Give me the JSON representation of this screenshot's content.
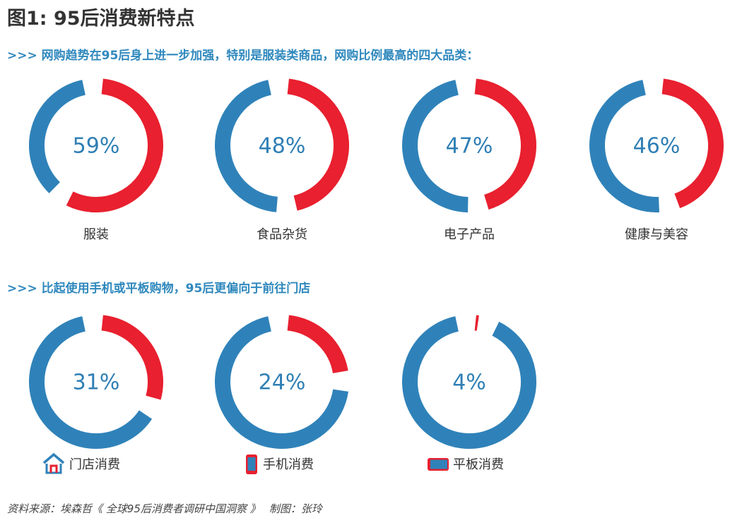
{
  "title": "图1: 95后消费新特点",
  "section1_heading": ">>> 网购趋势在95后身上进一步加强，特别是服装类商品，网购比例最高的四大品类：",
  "section2_heading": ">>> 比起使用手机或平板购物，95后更偏向于前往门店",
  "source": "资料来源：埃森哲《 全球95后消费者调研中国洞察 》　 制图：张玲",
  "colors": {
    "highlight": "#e8202f",
    "base": "#2f82b9",
    "text_blue": "#2f7fb5",
    "heading_blue": "#2f88bd"
  },
  "chart_data": [
    {
      "type": "pie",
      "categories": [
        "服装",
        "食品杂货",
        "电子产品",
        "健康与美容"
      ],
      "values": [
        59,
        48,
        47,
        46
      ],
      "labels": [
        "59%",
        "48%",
        "47%",
        "46%"
      ]
    },
    {
      "type": "pie",
      "categories": [
        "门店消费",
        "手机消费",
        "平板消费"
      ],
      "values": [
        31,
        24,
        4
      ],
      "labels": [
        "31%",
        "24%",
        "4%"
      ],
      "icons": [
        "store-icon",
        "phone-icon",
        "tablet-icon"
      ]
    }
  ]
}
